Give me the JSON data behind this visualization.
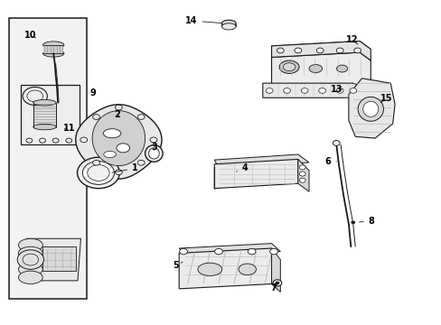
{
  "bg_color": "#ffffff",
  "line_color": "#1a1a1a",
  "gray_fill": "#e8e8e8",
  "light_fill": "#f2f2f2",
  "fig_width": 4.89,
  "fig_height": 3.6,
  "dpi": 100,
  "label_positions": {
    "1": [
      0.3,
      0.49,
      0.32,
      0.46
    ],
    "2": [
      0.265,
      0.635,
      0.268,
      0.648
    ],
    "3": [
      0.345,
      0.535,
      0.345,
      0.548
    ],
    "4": [
      0.54,
      0.47,
      0.555,
      0.483
    ],
    "5": [
      0.385,
      0.188,
      0.397,
      0.175
    ],
    "6": [
      0.74,
      0.49,
      0.756,
      0.49
    ],
    "7": [
      0.62,
      0.128,
      0.633,
      0.115
    ],
    "8": [
      0.82,
      0.31,
      0.838,
      0.31
    ],
    "9": [
      0.185,
      0.715,
      0.193,
      0.715
    ],
    "10": [
      0.065,
      0.88,
      0.07,
      0.892
    ],
    "11": [
      0.148,
      0.598,
      0.155,
      0.598
    ],
    "12": [
      0.78,
      0.872,
      0.793,
      0.872
    ],
    "13": [
      0.748,
      0.72,
      0.762,
      0.72
    ],
    "14": [
      0.42,
      0.935,
      0.432,
      0.935
    ],
    "15": [
      0.855,
      0.69,
      0.87,
      0.69
    ]
  }
}
